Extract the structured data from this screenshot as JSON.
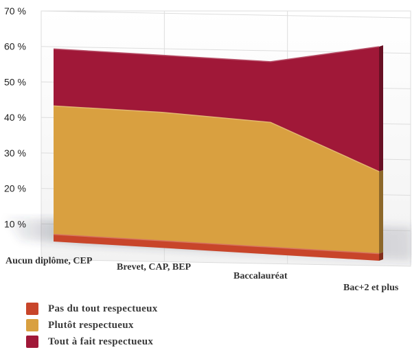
{
  "chart_data": {
    "type": "area",
    "stacked": true,
    "three_d": true,
    "categories": [
      "Aucun diplôme, CEP",
      "Brevet, CAP, BEP",
      "Baccalauréat",
      "Bac+2 et plus"
    ],
    "y_ticks": [
      "10 %",
      "20 %",
      "30 %",
      "40 %",
      "50 %",
      "60 %",
      "70 %"
    ],
    "ylim": [
      0,
      70
    ],
    "grid": true,
    "legend_position": "bottom-left",
    "series": [
      {
        "name": "Pas du tout respectueux",
        "color": "#c8452a",
        "values": [
          2,
          2,
          2,
          2
        ]
      },
      {
        "name": "Plutôt respectueux",
        "color": "#d9a040",
        "values": [
          36,
          36,
          35,
          23
        ]
      },
      {
        "name": "Tout à fait respectueux",
        "color": "#a01838",
        "values": [
          16,
          16,
          17,
          35
        ]
      }
    ]
  }
}
